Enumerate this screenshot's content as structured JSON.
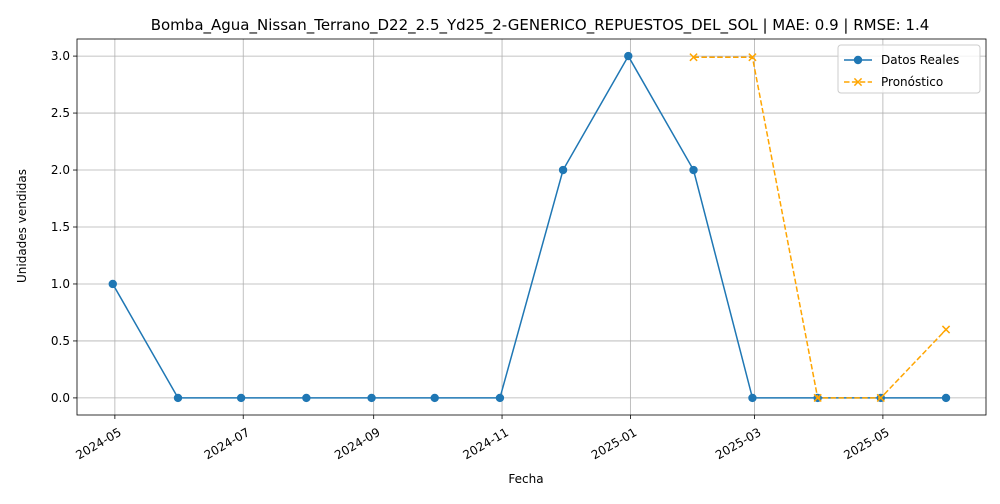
{
  "chart_data": {
    "type": "line",
    "title": "Bomba_Agua_Nissan_Terrano_D22_2.5_Yd25_2-GENERICO_REPUESTOS_DEL_SOL | MAE: 0.9 | RMSE: 1.4",
    "xlabel": "Fecha",
    "ylabel": "Unidades vendidas",
    "x_ticks": [
      "2024-05",
      "2024-07",
      "2024-09",
      "2024-11",
      "2025-01",
      "2025-03",
      "2025-05"
    ],
    "y_ticks": [
      "0.0",
      "0.5",
      "1.0",
      "1.5",
      "2.0",
      "2.5",
      "3.0"
    ],
    "ylim": [
      -0.15,
      3.15
    ],
    "xlim": [
      "2024-04-13",
      "2025-06-19"
    ],
    "grid": true,
    "legend": "top-right",
    "series": [
      {
        "name": "Datos Reales",
        "color": "#1f77b4",
        "marker": "circle",
        "linestyle": "solid",
        "x": [
          "2024-04-30",
          "2024-05-31",
          "2024-06-30",
          "2024-07-31",
          "2024-08-31",
          "2024-09-30",
          "2024-10-31",
          "2024-11-30",
          "2024-12-31",
          "2025-01-31",
          "2025-02-28",
          "2025-03-31",
          "2025-04-30",
          "2025-05-31"
        ],
        "values": [
          1,
          0,
          0,
          0,
          0,
          0,
          0,
          2,
          3,
          2,
          0,
          0,
          0,
          0
        ]
      },
      {
        "name": "Pronóstico",
        "color": "#ffa500",
        "marker": "x",
        "linestyle": "dashed",
        "x": [
          "2025-01-31",
          "2025-02-28",
          "2025-03-31",
          "2025-04-30",
          "2025-05-31"
        ],
        "values": [
          2.99,
          2.99,
          0.0,
          0.0,
          0.6
        ]
      }
    ]
  }
}
